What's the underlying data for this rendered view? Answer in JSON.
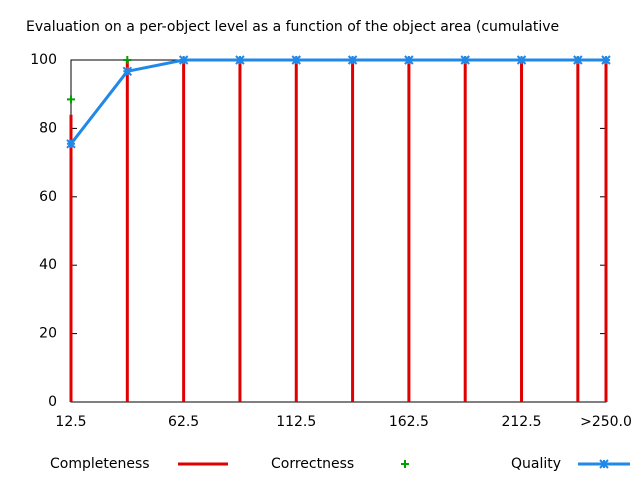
{
  "chart_data": {
    "type": "line",
    "title": "Evaluation on a per-object level as a function of the object area (cumulative",
    "x": [
      12.5,
      37.5,
      62.5,
      87.5,
      112.5,
      137.5,
      162.5,
      187.5,
      212.5,
      237.5,
      250
    ],
    "xlim": [
      12.5,
      250
    ],
    "xticks": [
      12.5,
      62.5,
      112.5,
      162.5,
      212.5,
      {
        "value": 250,
        "label": ">250.0"
      }
    ],
    "ylim": [
      0,
      100
    ],
    "yticks": [
      0,
      20,
      40,
      60,
      80,
      100
    ],
    "series": [
      {
        "name": "Completeness",
        "color": "#e00000",
        "style": "impulses",
        "values": [
          84,
          100,
          100,
          100,
          100,
          100,
          100,
          100,
          100,
          100,
          100
        ]
      },
      {
        "name": "Correctness",
        "color": "#00a000",
        "style": "points",
        "values": [
          88.5,
          100,
          100,
          100,
          100,
          100,
          100,
          100,
          100,
          100,
          100
        ]
      },
      {
        "name": "Quality",
        "color": "#2088e8",
        "style": "linespoints",
        "values": [
          75.5,
          96.7,
          100,
          100,
          100,
          100,
          100,
          100,
          100,
          100,
          100
        ]
      }
    ]
  }
}
